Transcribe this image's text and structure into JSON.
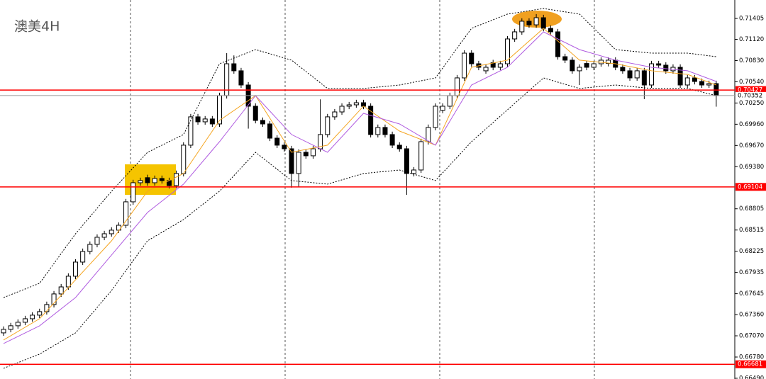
{
  "chart_data": {
    "type": "candlestick",
    "title": "澳美4H",
    "open": [
      0.6711,
      0.67158,
      0.67207,
      0.67255,
      0.67303,
      0.67352,
      0.674,
      0.67497,
      0.67642,
      0.67738,
      0.67884,
      0.68077,
      0.68222,
      0.68319,
      0.68416,
      0.68464,
      0.68513,
      0.6858,
      0.689,
      0.69161,
      0.6923,
      0.69161,
      0.69219,
      0.6919,
      0.69122,
      0.69287,
      0.69674,
      0.70061,
      0.69993,
      0.70032,
      0.69964,
      0.70351,
      0.70786,
      0.7069,
      0.70496,
      0.70206,
      0.70012,
      0.69964,
      0.6977,
      0.69674,
      0.69625,
      0.69287,
      0.69577,
      0.69529,
      0.69625,
      0.69819,
      0.70061,
      0.70128,
      0.70206,
      0.70225,
      0.70254,
      0.70206,
      0.69819,
      0.69916,
      0.69819,
      0.69674,
      0.69625,
      0.69287,
      0.69335,
      0.69722,
      0.69916,
      0.7015,
      0.70206,
      0.70351,
      0.70593,
      0.70931,
      0.70786,
      0.7069,
      0.708,
      0.70738,
      0.70786,
      0.71125,
      0.71222,
      0.71367,
      0.71318,
      0.71415,
      0.7127,
      0.71222,
      0.70883,
      0.70835,
      0.7069,
      0.7079,
      0.70738,
      0.70786,
      0.7079,
      0.70835,
      0.70738,
      0.7069,
      0.70593,
      0.7069,
      0.70496,
      0.70786,
      0.70767,
      0.7069,
      0.70738,
      0.70496,
      0.70593,
      0.70544,
      0.70496,
      0.70515
    ],
    "high": [
      0.67198,
      0.67247,
      0.67295,
      0.67343,
      0.67392,
      0.6744,
      0.67537,
      0.67682,
      0.67778,
      0.67924,
      0.68117,
      0.68262,
      0.68359,
      0.68456,
      0.68504,
      0.68553,
      0.6862,
      0.6894,
      0.69201,
      0.6923,
      0.6927,
      0.69259,
      0.69259,
      0.6923,
      0.69327,
      0.69714,
      0.70101,
      0.70101,
      0.70072,
      0.70072,
      0.70391,
      0.70931,
      0.709,
      0.7073,
      0.70536,
      0.70246,
      0.70052,
      0.70004,
      0.6981,
      0.69714,
      0.69665,
      0.69617,
      0.69617,
      0.69665,
      0.703,
      0.70101,
      0.70168,
      0.70246,
      0.70265,
      0.70294,
      0.70294,
      0.70246,
      0.69956,
      0.69956,
      0.69859,
      0.69714,
      0.69665,
      0.69375,
      0.69762,
      0.69956,
      0.70246,
      0.70246,
      0.70391,
      0.70633,
      0.70971,
      0.70971,
      0.70826,
      0.70778,
      0.7084,
      0.70826,
      0.71165,
      0.71262,
      0.71407,
      0.71407,
      0.71464,
      0.71455,
      0.7131,
      0.71262,
      0.70923,
      0.70875,
      0.70778,
      0.7083,
      0.70826,
      0.70875,
      0.70875,
      0.70875,
      0.70778,
      0.7073,
      0.7073,
      0.7073,
      0.70826,
      0.70826,
      0.70807,
      0.70778,
      0.70778,
      0.70633,
      0.70633,
      0.70584,
      0.70555,
      0.70555
    ],
    "low": [
      0.6707,
      0.67118,
      0.67167,
      0.67215,
      0.67263,
      0.67312,
      0.6736,
      0.67457,
      0.67602,
      0.67698,
      0.67844,
      0.68037,
      0.68182,
      0.68279,
      0.68376,
      0.68424,
      0.68473,
      0.6854,
      0.6886,
      0.69121,
      0.69121,
      0.69121,
      0.6915,
      0.69082,
      0.69082,
      0.69247,
      0.69634,
      0.69953,
      0.69953,
      0.69924,
      0.69924,
      0.70311,
      0.7065,
      0.70456,
      0.699,
      0.69972,
      0.69924,
      0.6973,
      0.69634,
      0.69585,
      0.69094,
      0.691,
      0.69489,
      0.69489,
      0.69585,
      0.69779,
      0.70021,
      0.70088,
      0.70166,
      0.70185,
      0.70166,
      0.69779,
      0.69779,
      0.69779,
      0.69634,
      0.69585,
      0.68996,
      0.69247,
      0.69295,
      0.69682,
      0.69876,
      0.7011,
      0.70166,
      0.70311,
      0.70553,
      0.70746,
      0.70698,
      0.7065,
      0.70698,
      0.70698,
      0.70746,
      0.71085,
      0.71182,
      0.71278,
      0.71278,
      0.7123,
      0.71182,
      0.70843,
      0.70795,
      0.7065,
      0.70496,
      0.70698,
      0.70698,
      0.70746,
      0.7075,
      0.70698,
      0.7065,
      0.70553,
      0.70553,
      0.70303,
      0.70456,
      0.70727,
      0.7065,
      0.7065,
      0.70456,
      0.70456,
      0.70504,
      0.70456,
      0.70456,
      0.702
    ],
    "close": [
      0.67158,
      0.67207,
      0.67255,
      0.67303,
      0.67352,
      0.674,
      0.67497,
      0.67642,
      0.67738,
      0.67884,
      0.68077,
      0.68222,
      0.68319,
      0.68416,
      0.68464,
      0.68513,
      0.6858,
      0.689,
      0.69161,
      0.6919,
      0.69161,
      0.69219,
      0.6919,
      0.69122,
      0.69287,
      0.69674,
      0.70061,
      0.69993,
      0.70032,
      0.69964,
      0.70351,
      0.70786,
      0.7069,
      0.70496,
      0.70206,
      0.70012,
      0.69964,
      0.6977,
      0.69674,
      0.69625,
      0.69287,
      0.69577,
      0.69529,
      0.69625,
      0.69819,
      0.70061,
      0.70128,
      0.70206,
      0.70225,
      0.70254,
      0.70206,
      0.69819,
      0.69916,
      0.69819,
      0.69674,
      0.69625,
      0.69287,
      0.69335,
      0.69722,
      0.69916,
      0.70206,
      0.70206,
      0.70351,
      0.70593,
      0.70931,
      0.70786,
      0.70738,
      0.70738,
      0.70738,
      0.70786,
      0.71125,
      0.71222,
      0.71367,
      0.71318,
      0.71415,
      0.7127,
      0.71222,
      0.70883,
      0.70835,
      0.7069,
      0.70738,
      0.70738,
      0.70786,
      0.70835,
      0.70835,
      0.70738,
      0.7069,
      0.70593,
      0.7069,
      0.70496,
      0.70786,
      0.70767,
      0.7069,
      0.70738,
      0.70496,
      0.70593,
      0.70544,
      0.70496,
      0.70515,
      0.70351
    ],
    "overlays": [
      {
        "color": "#f5a623",
        "dashed": false,
        "x": [
          0,
          5,
          10,
          15,
          20,
          25,
          30,
          35,
          40,
          45,
          50,
          55,
          60,
          65,
          70,
          75,
          80,
          85,
          90,
          95,
          99
        ],
        "values": [
          0.67013,
          0.67303,
          0.67835,
          0.68368,
          0.69045,
          0.69287,
          0.70012,
          0.70351,
          0.69577,
          0.69674,
          0.70206,
          0.69867,
          0.69674,
          0.70738,
          0.70835,
          0.7127,
          0.70835,
          0.70786,
          0.7069,
          0.70641,
          0.70496
        ]
      },
      {
        "color": "#b05ce0",
        "dashed": false,
        "x": [
          0,
          5,
          10,
          15,
          20,
          25,
          30,
          35,
          40,
          45,
          50,
          55,
          60,
          65,
          70,
          75,
          80,
          85,
          90,
          95,
          99
        ],
        "values": [
          0.66965,
          0.67207,
          0.67593,
          0.68174,
          0.68755,
          0.69142,
          0.69722,
          0.70351,
          0.69819,
          0.69577,
          0.70109,
          0.69964,
          0.69674,
          0.70496,
          0.70738,
          0.71222,
          0.7098,
          0.70835,
          0.70738,
          0.7069,
          0.70544
        ]
      },
      {
        "color": "#000000",
        "dashed": true,
        "x": [
          0,
          5,
          10,
          15,
          20,
          25,
          30,
          35,
          40,
          45,
          50,
          55,
          60,
          65,
          70,
          75,
          80,
          85,
          90,
          95,
          99
        ],
        "values": [
          0.67593,
          0.67787,
          0.68464,
          0.69045,
          0.69577,
          0.69819,
          0.70786,
          0.7098,
          0.70835,
          0.70448,
          0.70448,
          0.70496,
          0.70593,
          0.7127,
          0.71464,
          0.71541,
          0.71464,
          0.7098,
          0.70931,
          0.70931,
          0.70883
        ]
      },
      {
        "color": "#000000",
        "dashed": true,
        "x": [
          0,
          5,
          10,
          15,
          20,
          25,
          30,
          35,
          40,
          45,
          50,
          55,
          60,
          65,
          70,
          75,
          80,
          85,
          90,
          95,
          99
        ],
        "values": [
          0.66626,
          0.6682,
          0.6711,
          0.6769,
          0.68368,
          0.68658,
          0.69045,
          0.69577,
          0.6919,
          0.69142,
          0.69287,
          0.69335,
          0.6919,
          0.69722,
          0.70157,
          0.70593,
          0.70448,
          0.70496,
          0.70448,
          0.70448,
          0.70351
        ]
      }
    ],
    "hlines": [
      {
        "value": 0.70427,
        "color": "#ff0000"
      },
      {
        "value": 0.69104,
        "color": "#ff0000"
      },
      {
        "value": 0.66681,
        "color": "#ff0000"
      }
    ],
    "last_price": 0.70352,
    "ylim": [
      0.6648,
      0.71657
    ],
    "yticks": [
      0.71405,
      {
        "value": 0.7112,
        "label": "0.71120"
      },
      {
        "value": 0.7083,
        "label": "0.70830"
      },
      {
        "value": 0.7054,
        "label": "0.70540"
      },
      {
        "value": 0.7025,
        "label": "0.70250"
      },
      {
        "value": 0.6996,
        "label": "0.69960"
      },
      {
        "value": 0.6967,
        "label": "0.69670"
      },
      {
        "value": 0.6938,
        "label": "0.69380"
      },
      0.68805,
      0.68515,
      0.68225,
      0.67935,
      0.67645,
      {
        "value": 0.6736,
        "label": "0.67360"
      },
      {
        "value": 0.6707,
        "label": "0.67070"
      },
      {
        "value": 0.6678,
        "label": "0.66780"
      },
      {
        "value": 0.6649,
        "label": "0.66490"
      }
    ]
  }
}
